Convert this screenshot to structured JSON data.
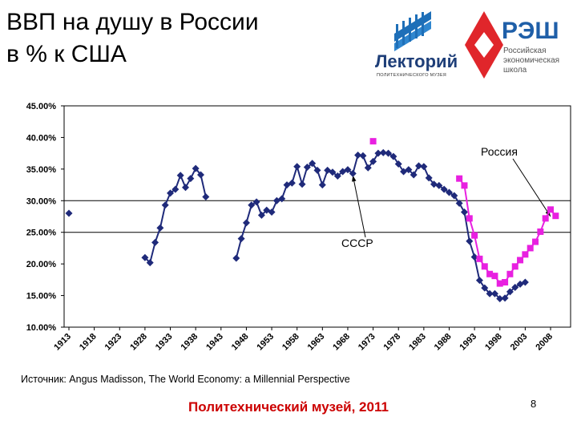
{
  "slide": {
    "title_line1": "ВВП на душу в России",
    "title_line2": "в % к США",
    "source": "Источник: Angus Madisson, The World Economy: a Millennial Perspective",
    "footer": "Политехнический музей, 2011",
    "page_number": "8"
  },
  "logos": {
    "lektoriy": {
      "name": "Лекторий",
      "subtitle": "ПОЛИТЕХНИЧЕСКОГО МУЗЕЯ",
      "color": "#1e6fb8"
    },
    "res": {
      "name": "РЭШ",
      "line1": "Российская",
      "line2": "экономическая",
      "line3": "школа",
      "red": "#e0262b",
      "blue": "#1f5fa8"
    }
  },
  "chart_data": {
    "type": "line",
    "x_range": [
      1913,
      2011
    ],
    "ylim": [
      10,
      45
    ],
    "y_tick_values": [
      10,
      15,
      20,
      25,
      30,
      35,
      40,
      45
    ],
    "y_tick_labels": [
      "10.00%",
      "15.00%",
      "20.00%",
      "25.00%",
      "30.00%",
      "35.00%",
      "40.00%",
      "45.00%"
    ],
    "x_tick_labels": [
      "1913",
      "1918",
      "1923",
      "1928",
      "1933",
      "1938",
      "1943",
      "1948",
      "1953",
      "1958",
      "1963",
      "1968",
      "1973",
      "1978",
      "1983",
      "1988",
      "1993",
      "1998",
      "2003",
      "2008"
    ],
    "reference_lines": [
      25,
      30
    ],
    "annotations": [
      {
        "text": "Россия",
        "pointer_year": 2008,
        "pointer_value": 27.5
      },
      {
        "text": "СССР",
        "pointer_year": 1969,
        "pointer_value": 34.0
      }
    ],
    "series": [
      {
        "name": "СССР",
        "color": "#1f2a7a",
        "marker": "diamond",
        "segments": [
          [
            [
              1913,
              28.0
            ]
          ],
          [
            [
              1928,
              21.0
            ],
            [
              1929,
              20.2
            ],
            [
              1930,
              23.4
            ],
            [
              1931,
              25.7
            ],
            [
              1932,
              29.3
            ],
            [
              1933,
              31.2
            ],
            [
              1934,
              31.8
            ],
            [
              1935,
              34.0
            ],
            [
              1936,
              32.1
            ],
            [
              1937,
              33.5
            ],
            [
              1938,
              35.1
            ],
            [
              1939,
              34.1
            ],
            [
              1940,
              30.6
            ]
          ],
          [
            [
              1946,
              20.9
            ],
            [
              1947,
              24.0
            ],
            [
              1948,
              26.5
            ],
            [
              1949,
              29.3
            ],
            [
              1950,
              29.8
            ],
            [
              1951,
              27.7
            ],
            [
              1952,
              28.5
            ],
            [
              1953,
              28.2
            ],
            [
              1954,
              30.0
            ],
            [
              1955,
              30.3
            ],
            [
              1956,
              32.5
            ],
            [
              1957,
              32.8
            ],
            [
              1958,
              35.4
            ],
            [
              1959,
              32.6
            ],
            [
              1960,
              35.3
            ],
            [
              1961,
              35.9
            ],
            [
              1962,
              34.8
            ],
            [
              1963,
              32.5
            ],
            [
              1964,
              34.8
            ],
            [
              1965,
              34.5
            ],
            [
              1966,
              33.9
            ],
            [
              1967,
              34.6
            ],
            [
              1968,
              34.9
            ],
            [
              1969,
              34.3
            ],
            [
              1970,
              37.2
            ],
            [
              1971,
              37.1
            ],
            [
              1972,
              35.2
            ],
            [
              1973,
              36.2
            ],
            [
              1974,
              37.5
            ],
            [
              1975,
              37.6
            ],
            [
              1976,
              37.5
            ],
            [
              1977,
              37.0
            ],
            [
              1978,
              35.8
            ],
            [
              1979,
              34.6
            ],
            [
              1980,
              34.9
            ],
            [
              1981,
              34.1
            ],
            [
              1982,
              35.5
            ],
            [
              1983,
              35.4
            ],
            [
              1984,
              33.6
            ],
            [
              1985,
              32.6
            ],
            [
              1986,
              32.4
            ],
            [
              1987,
              31.8
            ],
            [
              1988,
              31.3
            ],
            [
              1989,
              30.8
            ],
            [
              1990,
              29.6
            ],
            [
              1991,
              28.2
            ],
            [
              1992,
              23.6
            ],
            [
              1993,
              21.1
            ],
            [
              1994,
              17.4
            ],
            [
              1995,
              16.2
            ],
            [
              1996,
              15.3
            ],
            [
              1997,
              15.3
            ],
            [
              1998,
              14.5
            ],
            [
              1999,
              14.6
            ],
            [
              2000,
              15.6
            ],
            [
              2001,
              16.3
            ],
            [
              2002,
              16.8
            ],
            [
              2003,
              17.1
            ]
          ]
        ]
      },
      {
        "name": "Россия",
        "color": "#e820e0",
        "marker": "square",
        "segments": [
          [
            [
              1973,
              39.4
            ]
          ],
          [
            [
              1990,
              33.5
            ],
            [
              1991,
              32.4
            ],
            [
              1992,
              27.2
            ],
            [
              1993,
              24.5
            ],
            [
              1994,
              20.8
            ],
            [
              1995,
              19.6
            ],
            [
              1996,
              18.4
            ],
            [
              1997,
              18.1
            ],
            [
              1998,
              16.9
            ],
            [
              1999,
              17.1
            ],
            [
              2000,
              18.4
            ],
            [
              2001,
              19.6
            ],
            [
              2002,
              20.6
            ],
            [
              2003,
              21.5
            ],
            [
              2004,
              22.5
            ],
            [
              2005,
              23.5
            ],
            [
              2006,
              25.1
            ],
            [
              2007,
              27.2
            ],
            [
              2008,
              28.6
            ],
            [
              2009,
              27.6
            ]
          ]
        ]
      }
    ]
  }
}
